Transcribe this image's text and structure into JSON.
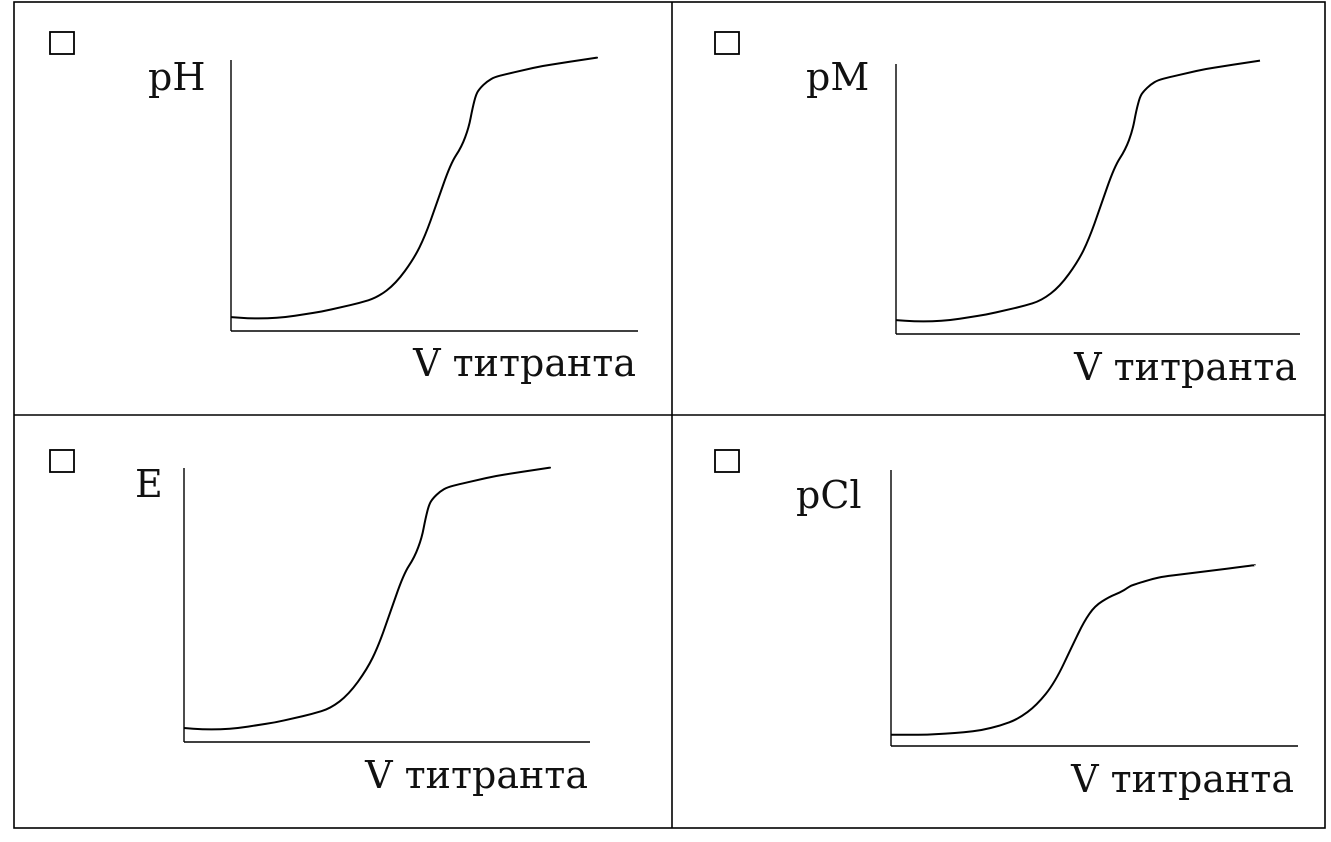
{
  "chart_data": [
    {
      "type": "line",
      "ylabel": "pH",
      "xlabel": "V титранта",
      "checkbox_checked": false,
      "x": [
        0,
        0.05,
        0.1,
        0.15,
        0.2,
        0.25,
        0.3,
        0.35,
        0.4,
        0.45,
        0.5,
        0.53,
        0.56,
        0.6,
        0.63,
        0.65,
        0.66,
        0.67,
        0.68,
        0.7,
        0.72,
        0.75,
        0.8,
        0.85,
        0.9,
        0.95,
        1.0
      ],
      "values": [
        0.05,
        0.045,
        0.045,
        0.05,
        0.06,
        0.07,
        0.085,
        0.1,
        0.12,
        0.17,
        0.26,
        0.34,
        0.45,
        0.6,
        0.66,
        0.73,
        0.8,
        0.85,
        0.87,
        0.895,
        0.91,
        0.92,
        0.935,
        0.95,
        0.96,
        0.97,
        0.98
      ]
    },
    {
      "type": "line",
      "ylabel": "pM",
      "xlabel": "V титранта",
      "checkbox_checked": false,
      "x": [
        0,
        0.05,
        0.1,
        0.15,
        0.2,
        0.25,
        0.3,
        0.35,
        0.4,
        0.45,
        0.5,
        0.53,
        0.56,
        0.6,
        0.63,
        0.65,
        0.66,
        0.67,
        0.68,
        0.7,
        0.72,
        0.75,
        0.8,
        0.85,
        0.9,
        0.95,
        1.0
      ],
      "values": [
        0.05,
        0.045,
        0.045,
        0.05,
        0.06,
        0.07,
        0.085,
        0.1,
        0.12,
        0.17,
        0.26,
        0.34,
        0.45,
        0.6,
        0.66,
        0.73,
        0.8,
        0.85,
        0.87,
        0.895,
        0.91,
        0.92,
        0.935,
        0.95,
        0.96,
        0.97,
        0.98
      ]
    },
    {
      "type": "line",
      "ylabel": "E",
      "xlabel": "V титранта",
      "checkbox_checked": false,
      "x": [
        0,
        0.05,
        0.1,
        0.15,
        0.2,
        0.25,
        0.3,
        0.35,
        0.4,
        0.45,
        0.5,
        0.53,
        0.56,
        0.6,
        0.63,
        0.65,
        0.66,
        0.67,
        0.68,
        0.7,
        0.72,
        0.75,
        0.8,
        0.85,
        0.9,
        0.95,
        1.0
      ],
      "values": [
        0.05,
        0.045,
        0.045,
        0.05,
        0.06,
        0.07,
        0.085,
        0.1,
        0.12,
        0.17,
        0.26,
        0.34,
        0.45,
        0.6,
        0.66,
        0.73,
        0.8,
        0.85,
        0.87,
        0.895,
        0.91,
        0.92,
        0.935,
        0.95,
        0.96,
        0.97,
        0.98
      ]
    },
    {
      "type": "line",
      "ylabel": "pCl",
      "xlabel": "V титранта",
      "checkbox_checked": false,
      "x": [
        0,
        0.05,
        0.1,
        0.15,
        0.2,
        0.25,
        0.3,
        0.35,
        0.4,
        0.45,
        0.5,
        0.53,
        0.56,
        0.6,
        0.63,
        0.65,
        0.66,
        0.67,
        0.68,
        0.7,
        0.72,
        0.75,
        0.8,
        0.85,
        0.9,
        0.95,
        1.0
      ],
      "values": [
        0.05,
        0.05,
        0.05,
        0.055,
        0.06,
        0.07,
        0.09,
        0.12,
        0.18,
        0.28,
        0.45,
        0.55,
        0.62,
        0.66,
        0.68,
        0.7,
        0.71,
        0.715,
        0.72,
        0.73,
        0.74,
        0.75,
        0.76,
        0.77,
        0.78,
        0.79,
        0.8
      ]
    }
  ]
}
